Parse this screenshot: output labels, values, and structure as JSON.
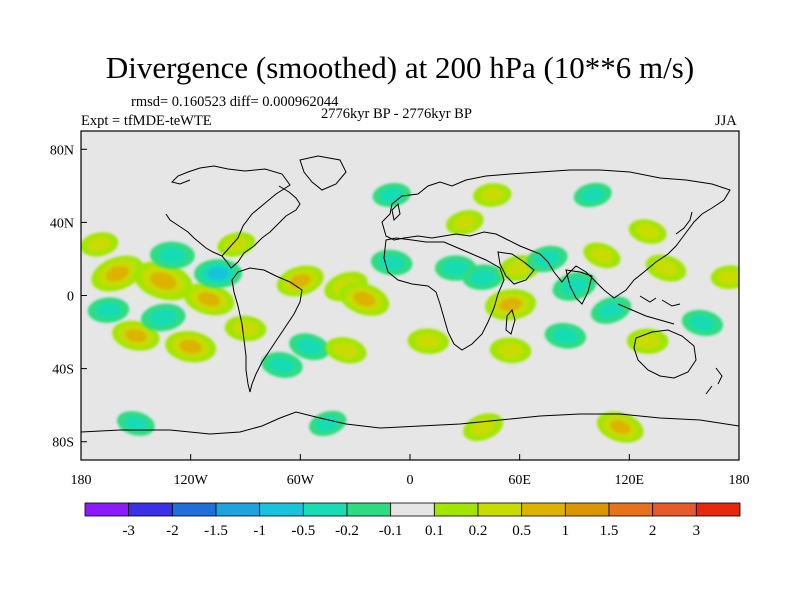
{
  "chart_data": {
    "type": "heatmap",
    "title": "Divergence (smoothed) at 200 hPa (10**6 m/s)",
    "stats": "rmsd= 0.160523 diff= 0.000962044",
    "experiment": "Expt = tfMDE-teWTE",
    "period": "2776kyr BP - 2776kyr BP",
    "season": "JJA",
    "xlim": [
      -180,
      180
    ],
    "ylim": [
      -90,
      90
    ],
    "x_ticks": [
      {
        "value": -180,
        "label": "180"
      },
      {
        "value": -120,
        "label": "120W"
      },
      {
        "value": -60,
        "label": "60W"
      },
      {
        "value": 0,
        "label": "0"
      },
      {
        "value": 60,
        "label": "60E"
      },
      {
        "value": 120,
        "label": "120E"
      },
      {
        "value": 180,
        "label": "180"
      }
    ],
    "y_ticks": [
      {
        "value": 80,
        "label": "80N"
      },
      {
        "value": 40,
        "label": "40N"
      },
      {
        "value": 0,
        "label": "0"
      },
      {
        "value": -40,
        "label": "40S"
      },
      {
        "value": -80,
        "label": "80S"
      }
    ],
    "colorbar": {
      "colors": [
        "#8c1aff",
        "#3a30e6",
        "#1f6edc",
        "#1ea3dc",
        "#19c3dc",
        "#19dcb4",
        "#2ddc82",
        "#e6e6e6",
        "#a2e600",
        "#c8dc00",
        "#dcb400",
        "#dc9600",
        "#e67319",
        "#e65a2d",
        "#e6280f"
      ],
      "labels": [
        "-3",
        "-2",
        "-1.5",
        "-1",
        "-0.5",
        "-0.2",
        "-0.1",
        "0.1",
        "0.2",
        "0.5",
        "1",
        "1.5",
        "2",
        "3"
      ]
    },
    "blobs": [
      {
        "lon": -160,
        "lat": 12,
        "value": 0.7
      },
      {
        "lon": -135,
        "lat": 8,
        "value": 0.9
      },
      {
        "lon": -110,
        "lat": -2,
        "value": 0.6
      },
      {
        "lon": -150,
        "lat": -22,
        "value": 0.5
      },
      {
        "lon": -120,
        "lat": -28,
        "value": 0.6
      },
      {
        "lon": -90,
        "lat": -18,
        "value": 0.3
      },
      {
        "lon": -130,
        "lat": 22,
        "value": -0.4
      },
      {
        "lon": -105,
        "lat": 12,
        "value": -0.5
      },
      {
        "lon": -165,
        "lat": -8,
        "value": -0.3
      },
      {
        "lon": -135,
        "lat": -12,
        "value": -0.4
      },
      {
        "lon": -170,
        "lat": 28,
        "value": 0.2
      },
      {
        "lon": -95,
        "lat": 28,
        "value": 0.2
      },
      {
        "lon": -60,
        "lat": 8,
        "value": 0.5
      },
      {
        "lon": -35,
        "lat": 5,
        "value": 0.4
      },
      {
        "lon": -25,
        "lat": -2,
        "value": 0.6
      },
      {
        "lon": -55,
        "lat": -28,
        "value": -0.3
      },
      {
        "lon": -35,
        "lat": -30,
        "value": 0.3
      },
      {
        "lon": -70,
        "lat": -38,
        "value": -0.3
      },
      {
        "lon": -10,
        "lat": 18,
        "value": -0.3
      },
      {
        "lon": 10,
        "lat": -25,
        "value": 0.3
      },
      {
        "lon": 25,
        "lat": 15,
        "value": -0.3
      },
      {
        "lon": 40,
        "lat": 10,
        "value": -0.3
      },
      {
        "lon": 55,
        "lat": -5,
        "value": 0.6
      },
      {
        "lon": 60,
        "lat": 15,
        "value": 0.3
      },
      {
        "lon": 75,
        "lat": 20,
        "value": -0.3
      },
      {
        "lon": 90,
        "lat": 5,
        "value": -0.4
      },
      {
        "lon": 110,
        "lat": -8,
        "value": -0.3
      },
      {
        "lon": 105,
        "lat": 22,
        "value": 0.2
      },
      {
        "lon": 140,
        "lat": 15,
        "value": 0.3
      },
      {
        "lon": 130,
        "lat": 35,
        "value": 0.2
      },
      {
        "lon": 160,
        "lat": -15,
        "value": -0.3
      },
      {
        "lon": 85,
        "lat": -22,
        "value": -0.3
      },
      {
        "lon": 55,
        "lat": -30,
        "value": 0.3
      },
      {
        "lon": 130,
        "lat": -25,
        "value": 0.3
      },
      {
        "lon": 175,
        "lat": 10,
        "value": 0.2
      },
      {
        "lon": 45,
        "lat": 55,
        "value": 0.2
      },
      {
        "lon": -10,
        "lat": 55,
        "value": -0.2
      },
      {
        "lon": 100,
        "lat": 55,
        "value": -0.2
      },
      {
        "lon": 30,
        "lat": 40,
        "value": 0.2
      },
      {
        "lon": -45,
        "lat": -70,
        "value": -0.2
      },
      {
        "lon": 40,
        "lat": -72,
        "value": 0.3
      },
      {
        "lon": 115,
        "lat": -72,
        "value": 0.5
      },
      {
        "lon": -150,
        "lat": -70,
        "value": -0.2
      }
    ]
  }
}
